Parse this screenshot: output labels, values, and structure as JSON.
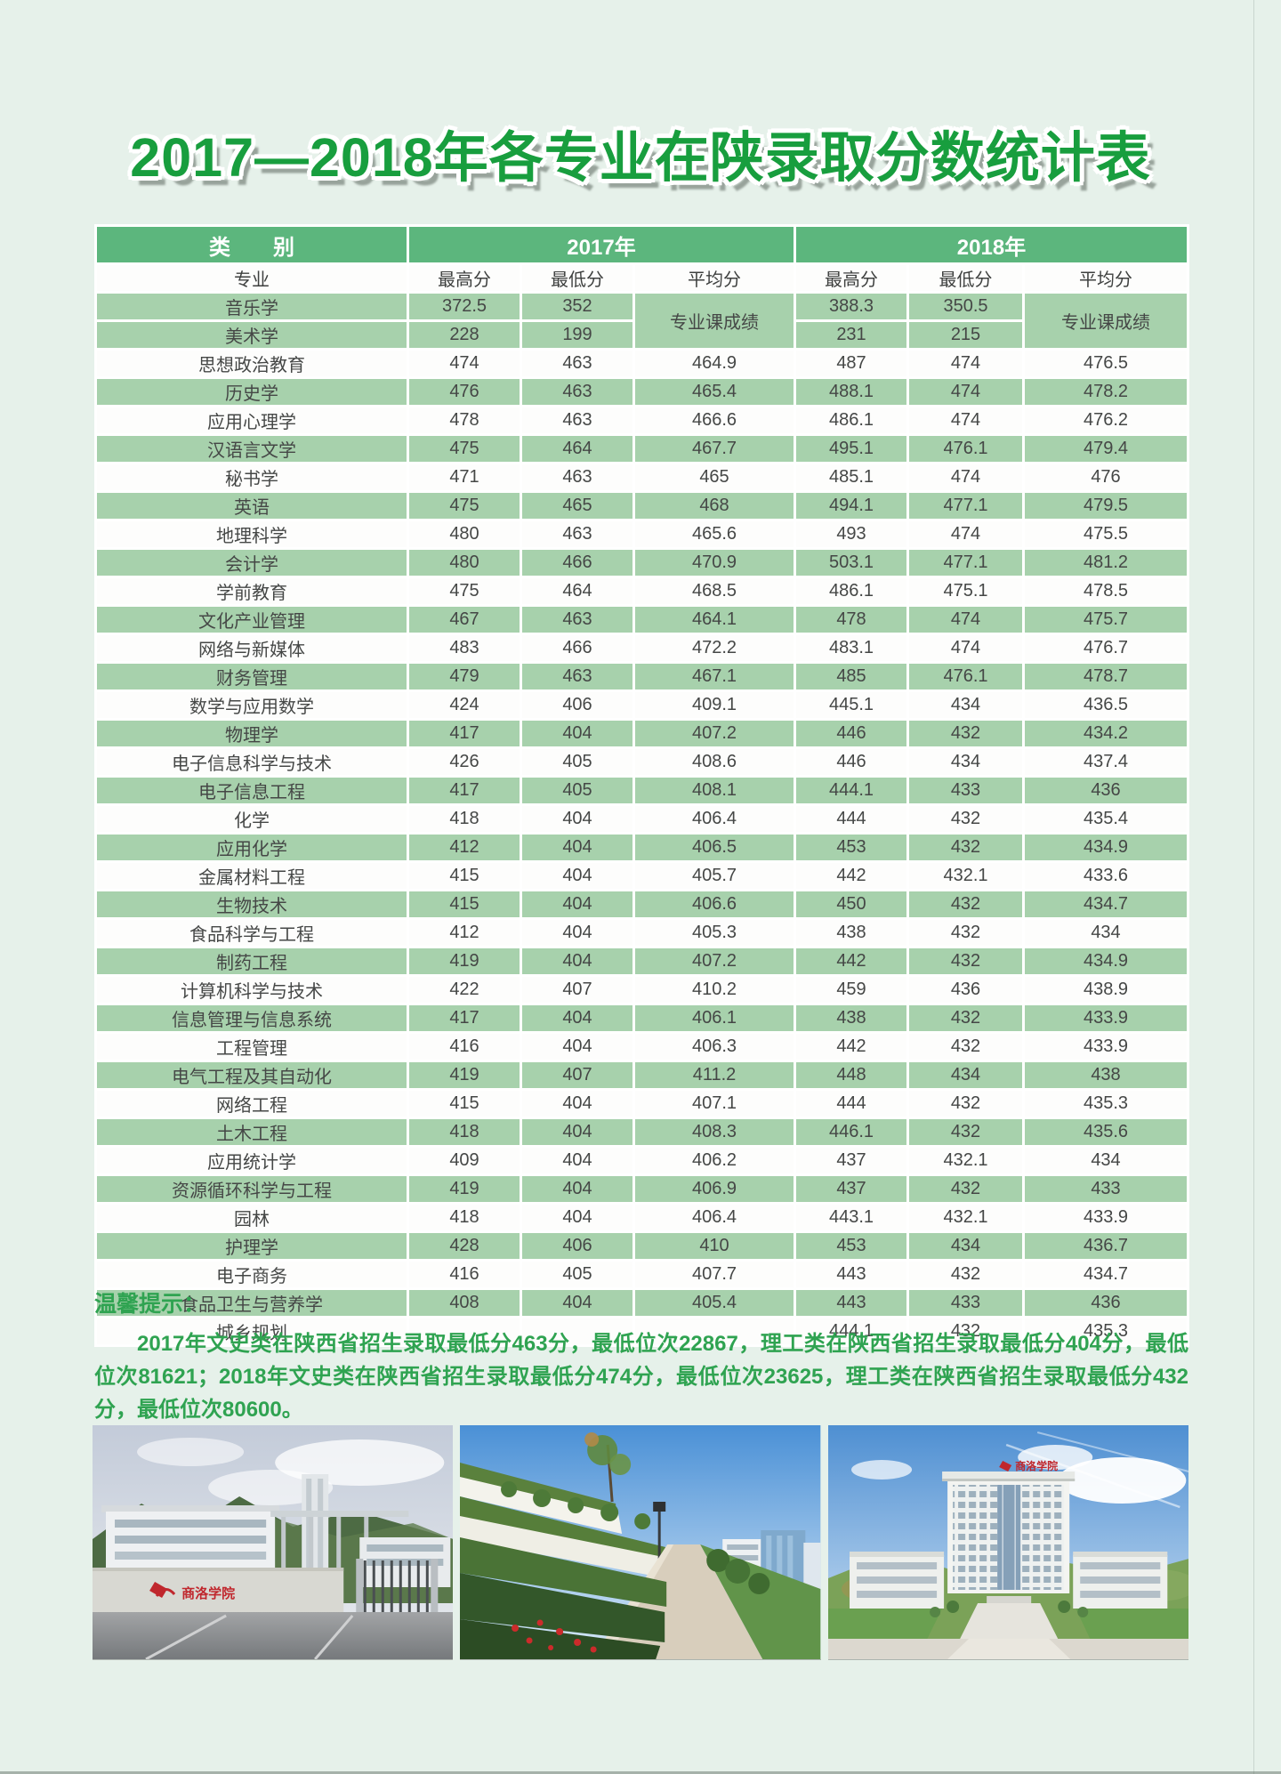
{
  "page": {
    "title": "2017—2018年各专业在陕录取分数统计表"
  },
  "colors": {
    "page_background": "#e6f1ea",
    "title_green": "#189e3e",
    "header_green": "#5cb67d",
    "row_green": "#a7d1ac",
    "row_white": "#fdfdfc",
    "tips_green": "#2fa351",
    "table_text": "#454746",
    "logo_red": "#c0272d"
  },
  "table": {
    "group_headers": [
      "类　　别",
      "2017年",
      "2018年"
    ],
    "sub_headers": [
      "专业",
      "最高分",
      "最低分",
      "平均分",
      "最高分",
      "最低分",
      "平均分"
    ],
    "merged_2017": "专业课成绩",
    "merged_2018": "专业课成绩",
    "special_rows": [
      [
        "音乐学",
        "372.5",
        "352",
        "388.3",
        "350.5"
      ],
      [
        "美术学",
        "228",
        "199",
        "231",
        "215"
      ]
    ],
    "rows": [
      [
        "思想政治教育",
        "474",
        "463",
        "464.9",
        "487",
        "474",
        "476.5"
      ],
      [
        "历史学",
        "476",
        "463",
        "465.4",
        "488.1",
        "474",
        "478.2"
      ],
      [
        "应用心理学",
        "478",
        "463",
        "466.6",
        "486.1",
        "474",
        "476.2"
      ],
      [
        "汉语言文学",
        "475",
        "464",
        "467.7",
        "495.1",
        "476.1",
        "479.4"
      ],
      [
        "秘书学",
        "471",
        "463",
        "465",
        "485.1",
        "474",
        "476"
      ],
      [
        "英语",
        "475",
        "465",
        "468",
        "494.1",
        "477.1",
        "479.5"
      ],
      [
        "地理科学",
        "480",
        "463",
        "465.6",
        "493",
        "474",
        "475.5"
      ],
      [
        "会计学",
        "480",
        "466",
        "470.9",
        "503.1",
        "477.1",
        "481.2"
      ],
      [
        "学前教育",
        "475",
        "464",
        "468.5",
        "486.1",
        "475.1",
        "478.5"
      ],
      [
        "文化产业管理",
        "467",
        "463",
        "464.1",
        "478",
        "474",
        "475.7"
      ],
      [
        "网络与新媒体",
        "483",
        "466",
        "472.2",
        "483.1",
        "474",
        "476.7"
      ],
      [
        "财务管理",
        "479",
        "463",
        "467.1",
        "485",
        "476.1",
        "478.7"
      ],
      [
        "数学与应用数学",
        "424",
        "406",
        "409.1",
        "445.1",
        "434",
        "436.5"
      ],
      [
        "物理学",
        "417",
        "404",
        "407.2",
        "446",
        "432",
        "434.2"
      ],
      [
        "电子信息科学与技术",
        "426",
        "405",
        "408.6",
        "446",
        "434",
        "437.4"
      ],
      [
        "电子信息工程",
        "417",
        "405",
        "408.1",
        "444.1",
        "433",
        "436"
      ],
      [
        "化学",
        "418",
        "404",
        "406.4",
        "444",
        "432",
        "435.4"
      ],
      [
        "应用化学",
        "412",
        "404",
        "406.5",
        "453",
        "432",
        "434.9"
      ],
      [
        "金属材料工程",
        "415",
        "404",
        "405.7",
        "442",
        "432.1",
        "433.6"
      ],
      [
        "生物技术",
        "415",
        "404",
        "406.6",
        "450",
        "432",
        "434.7"
      ],
      [
        "食品科学与工程",
        "412",
        "404",
        "405.3",
        "438",
        "432",
        "434"
      ],
      [
        "制药工程",
        "419",
        "404",
        "407.2",
        "442",
        "432",
        "434.9"
      ],
      [
        "计算机科学与技术",
        "422",
        "407",
        "410.2",
        "459",
        "436",
        "438.9"
      ],
      [
        "信息管理与信息系统",
        "417",
        "404",
        "406.1",
        "438",
        "432",
        "433.9"
      ],
      [
        "工程管理",
        "416",
        "404",
        "406.3",
        "442",
        "432",
        "433.9"
      ],
      [
        "电气工程及其自动化",
        "419",
        "407",
        "411.2",
        "448",
        "434",
        "438"
      ],
      [
        "网络工程",
        "415",
        "404",
        "407.1",
        "444",
        "432",
        "435.3"
      ],
      [
        "土木工程",
        "418",
        "404",
        "408.3",
        "446.1",
        "432",
        "435.6"
      ],
      [
        "应用统计学",
        "409",
        "404",
        "406.2",
        "437",
        "432.1",
        "434"
      ],
      [
        "资源循环科学与工程",
        "419",
        "404",
        "406.9",
        "437",
        "432",
        "433"
      ],
      [
        "园林",
        "418",
        "404",
        "406.4",
        "443.1",
        "432.1",
        "433.9"
      ],
      [
        "护理学",
        "428",
        "406",
        "410",
        "453",
        "434",
        "436.7"
      ],
      [
        "电子商务",
        "416",
        "405",
        "407.7",
        "443",
        "432",
        "434.7"
      ],
      [
        "食品卫生与营养学",
        "408",
        "404",
        "405.4",
        "443",
        "433",
        "436"
      ],
      [
        "城乡规划",
        "",
        "",
        "",
        "444.1",
        "432",
        "435.3"
      ]
    ]
  },
  "tips": {
    "heading": "温馨提示：",
    "body": "2017年文史类在陕西省招生录取最低分463分，最低位次22867，理工类在陕西省招生录取最低分404分，最低位次81621；2018年文史类在陕西省招生录取最低分474分，最低位次23625，理工类在陕西省招生录取最低分432分，最低位次80600。"
  },
  "photos": {
    "logo_text": "商洛学院"
  }
}
